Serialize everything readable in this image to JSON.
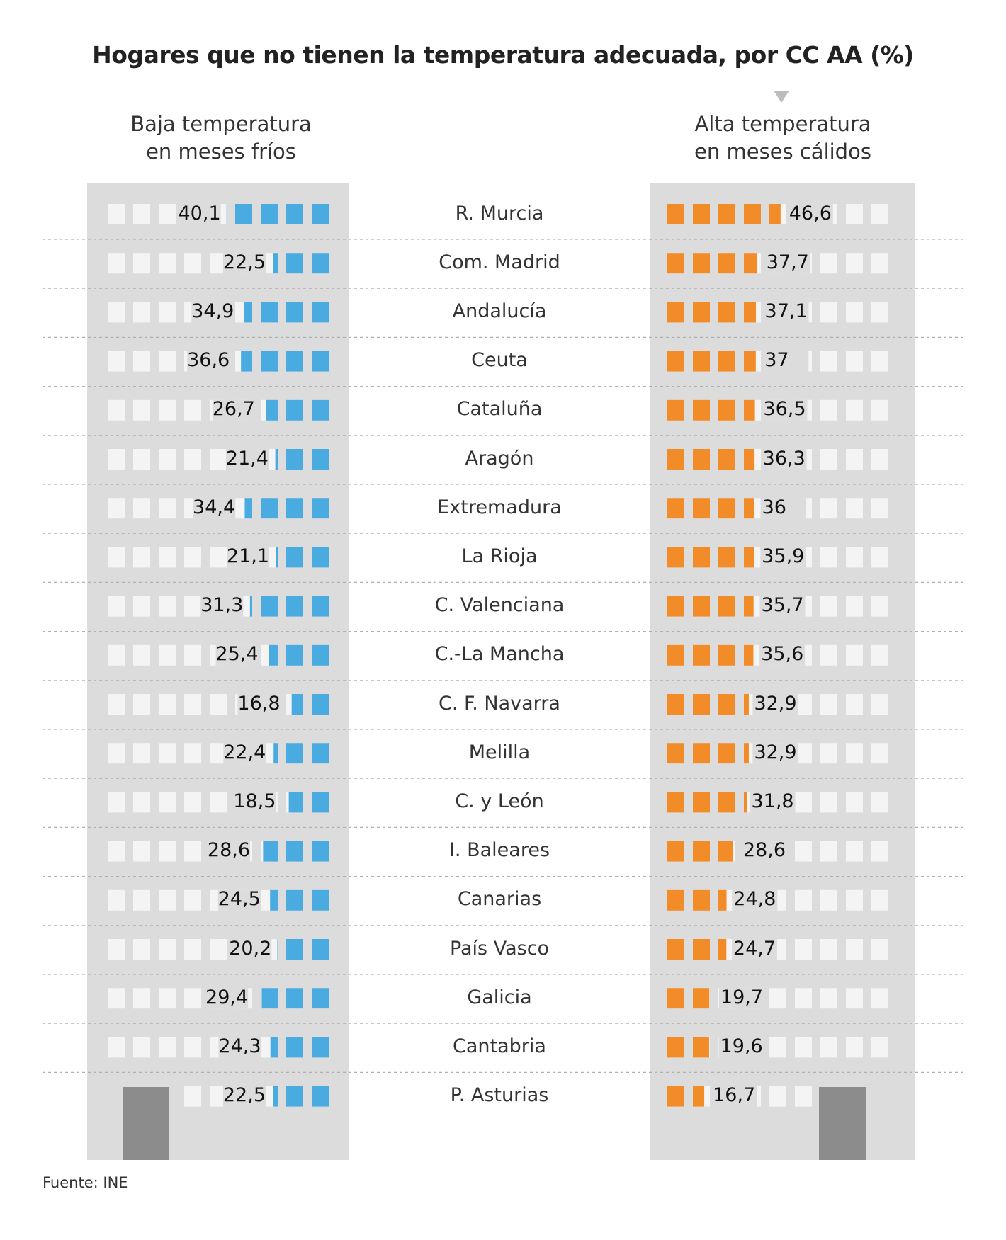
{
  "title": "Hogares que no tienen la temperatura adecuada, por CC AA (%)",
  "source": "Fuente: INE",
  "colors": {
    "cold": "#4aabe0",
    "hot": "#f28c28",
    "building": "#dcdcdc",
    "window": "#f4f4f4",
    "door": "#8c8c8c"
  },
  "chart_data": {
    "type": "bar",
    "title": "Hogares que no tienen la temperatura adecuada, por CC AA (%)",
    "series": [
      {
        "name": "Baja temperatura en meses fríos",
        "values": [
          40.1,
          22.5,
          34.9,
          36.6,
          26.7,
          21.4,
          34.4,
          21.1,
          31.3,
          25.4,
          16.8,
          22.4,
          18.5,
          28.6,
          24.5,
          20.2,
          29.4,
          24.3,
          22.5
        ],
        "labels": [
          "40,1",
          "22,5",
          "34,9",
          "36,6",
          "26,7",
          "21,4",
          "34,4",
          "21,1",
          "31,3",
          "25,4",
          "16,8",
          "22,4",
          "18,5",
          "28,6",
          "24,5",
          "20,2",
          "29,4",
          "24,3",
          "22,5"
        ]
      },
      {
        "name": "Alta temperatura en meses cálidos",
        "values": [
          46.6,
          37.7,
          37.1,
          37,
          36.5,
          36.3,
          36,
          35.9,
          35.7,
          35.6,
          32.9,
          32.9,
          31.8,
          28.6,
          24.8,
          24.7,
          19.7,
          19.6,
          16.7
        ],
        "labels": [
          "46,6",
          "37,7",
          "37,1",
          "37",
          "36,5",
          "36,3",
          "36",
          "35,9",
          "35,7",
          "35,6",
          "32,9",
          "32,9",
          "31,8",
          "28,6",
          "24,8",
          "24,7",
          "19,7",
          "19,6",
          "16,7"
        ]
      }
    ],
    "categories": [
      "R. Murcia",
      "Com. Madrid",
      "Andalucía",
      "Ceuta",
      "Cataluña",
      "Aragón",
      "Extremadura",
      "La Rioja",
      "C. Valenciana",
      "C.-La Mancha",
      "C. F. Navarra",
      "Melilla",
      "C. y León",
      "I. Baleares",
      "Canarias",
      "País Vasco",
      "Galicia",
      "Cantabria",
      "P. Asturias"
    ],
    "left_label_line1": "Baja temperatura",
    "left_label_line2": "en meses fríos",
    "right_label_line1": "Alta temperatura",
    "right_label_line2": "en meses cálidos",
    "units_per_window": 10,
    "xlabel": "",
    "ylabel": ""
  }
}
